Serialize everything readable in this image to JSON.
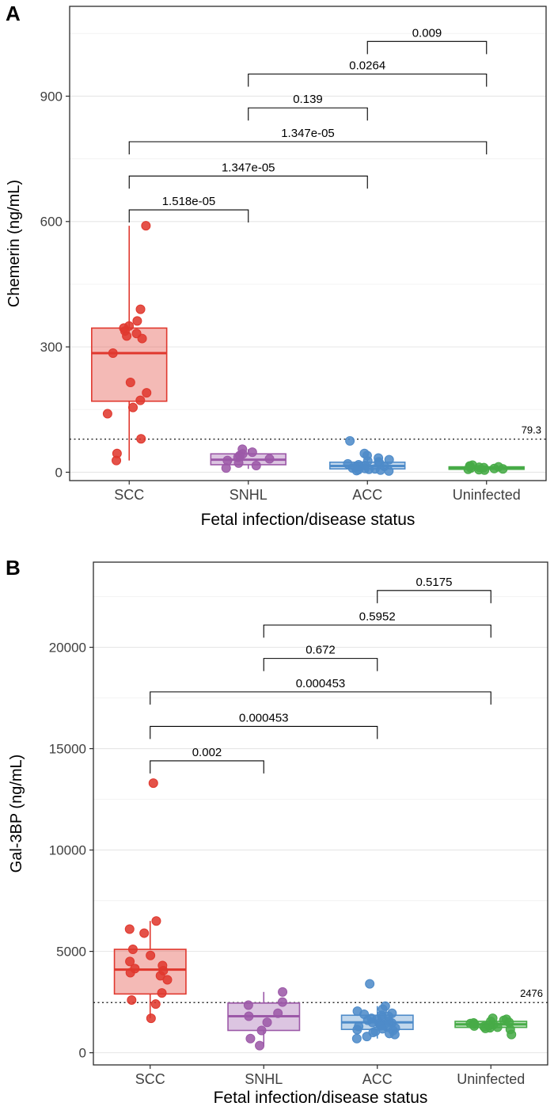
{
  "panels": [
    {
      "letter": "A"
    },
    {
      "letter": "B"
    }
  ],
  "chart_data": [
    {
      "type": "boxplot",
      "panel": "A",
      "title": "",
      "xlabel": "Fetal infection/disease status",
      "ylabel": "Chemerin (ng/mL)",
      "categories": [
        "SCC",
        "SNHL",
        "ACC",
        "Uninfected"
      ],
      "colors": [
        "#e0382e",
        "#9c59a8",
        "#4e8bc9",
        "#47ab47"
      ],
      "ylim": [
        -20,
        1115
      ],
      "yticks": [
        0,
        300,
        600,
        900
      ],
      "grid": true,
      "legend": "none",
      "reference_line": {
        "value": 79.3,
        "label": "79.3"
      },
      "groups": [
        {
          "name": "SCC",
          "whisker_low": 28,
          "q1": 170,
          "median": 285,
          "q3": 345,
          "whisker_high": 590,
          "points": [
            590,
            390,
            362,
            350,
            345,
            338,
            332,
            326,
            320,
            285,
            215,
            190,
            172,
            155,
            140,
            80,
            45,
            28
          ]
        },
        {
          "name": "SNHL",
          "whisker_low": 8,
          "q1": 18,
          "median": 30,
          "q3": 44,
          "whisker_high": 55,
          "points": [
            55,
            48,
            44,
            40,
            36,
            32,
            28,
            22,
            16,
            10
          ]
        },
        {
          "name": "ACC",
          "whisker_low": 2,
          "q1": 8,
          "median": 15,
          "q3": 24,
          "whisker_high": 45,
          "points": [
            75,
            45,
            40,
            34,
            30,
            27,
            25,
            22,
            20,
            18,
            16,
            14,
            13,
            12,
            10,
            9,
            8,
            7,
            6,
            5,
            4,
            3
          ]
        },
        {
          "name": "Uninfected",
          "whisker_low": 4,
          "q1": 7,
          "median": 10,
          "q3": 13,
          "whisker_high": 17,
          "points": [
            17,
            15,
            14,
            13,
            12,
            11,
            10,
            9,
            8,
            7,
            6,
            5
          ]
        }
      ],
      "comparisons": [
        {
          "a": "ACC",
          "b": "Uninfected",
          "label": "0.009",
          "y": 1031
        },
        {
          "a": "SNHL",
          "b": "Uninfected",
          "label": "0.0264",
          "y": 953
        },
        {
          "a": "SNHL",
          "b": "ACC",
          "label": "0.139",
          "y": 872
        },
        {
          "a": "SCC",
          "b": "Uninfected",
          "label": "1.347e-05",
          "y": 791
        },
        {
          "a": "SCC",
          "b": "ACC",
          "label": "1.347e-05",
          "y": 709
        },
        {
          "a": "SCC",
          "b": "SNHL",
          "label": "1.518e-05",
          "y": 628
        }
      ]
    },
    {
      "type": "boxplot",
      "panel": "B",
      "title": "",
      "xlabel": "Fetal infection/disease status",
      "ylabel": "Gal-3BP (ng/mL)",
      "categories": [
        "SCC",
        "SNHL",
        "ACC",
        "Uninfected"
      ],
      "colors": [
        "#e0382e",
        "#9c59a8",
        "#4e8bc9",
        "#47ab47"
      ],
      "ylim": [
        -600,
        24200
      ],
      "yticks": [
        0,
        5000,
        10000,
        15000,
        20000
      ],
      "grid": true,
      "legend": "none",
      "reference_line": {
        "value": 2476,
        "label": "2476"
      },
      "groups": [
        {
          "name": "SCC",
          "whisker_low": 1700,
          "q1": 2900,
          "median": 4100,
          "q3": 5100,
          "whisker_high": 6500,
          "points": [
            13300,
            6500,
            6100,
            5900,
            5100,
            4800,
            4500,
            4300,
            4150,
            4050,
            3950,
            3800,
            3600,
            2950,
            2600,
            2400,
            1700
          ]
        },
        {
          "name": "SNHL",
          "whisker_low": 350,
          "q1": 1100,
          "median": 1800,
          "q3": 2450,
          "whisker_high": 3000,
          "points": [
            3000,
            2500,
            2350,
            1950,
            1800,
            1500,
            1100,
            700,
            350
          ]
        },
        {
          "name": "ACC",
          "whisker_low": 700,
          "q1": 1150,
          "median": 1500,
          "q3": 1850,
          "whisker_high": 2300,
          "points": [
            3400,
            2300,
            2150,
            2050,
            1950,
            1900,
            1850,
            1800,
            1750,
            1700,
            1650,
            1600,
            1550,
            1500,
            1470,
            1440,
            1400,
            1370,
            1340,
            1300,
            1260,
            1220,
            1180,
            1140,
            1100,
            1050,
            1000,
            950,
            900,
            800,
            700
          ]
        },
        {
          "name": "Uninfected",
          "whisker_low": 1050,
          "q1": 1250,
          "median": 1400,
          "q3": 1550,
          "whisker_high": 1700,
          "points": [
            1700,
            1650,
            1600,
            1550,
            1500,
            1470,
            1440,
            1410,
            1380,
            1350,
            1320,
            1290,
            1260,
            1230,
            1200,
            1150,
            900
          ]
        }
      ],
      "comparisons": [
        {
          "a": "ACC",
          "b": "Uninfected",
          "label": "0.5175",
          "y": 22800
        },
        {
          "a": "SNHL",
          "b": "Uninfected",
          "label": "0.5952",
          "y": 21100
        },
        {
          "a": "SNHL",
          "b": "ACC",
          "label": "0.672",
          "y": 19450
        },
        {
          "a": "SCC",
          "b": "Uninfected",
          "label": "0.000453",
          "y": 17800
        },
        {
          "a": "SCC",
          "b": "ACC",
          "label": "0.000453",
          "y": 16100
        },
        {
          "a": "SCC",
          "b": "SNHL",
          "label": "0.002",
          "y": 14400
        }
      ]
    }
  ]
}
